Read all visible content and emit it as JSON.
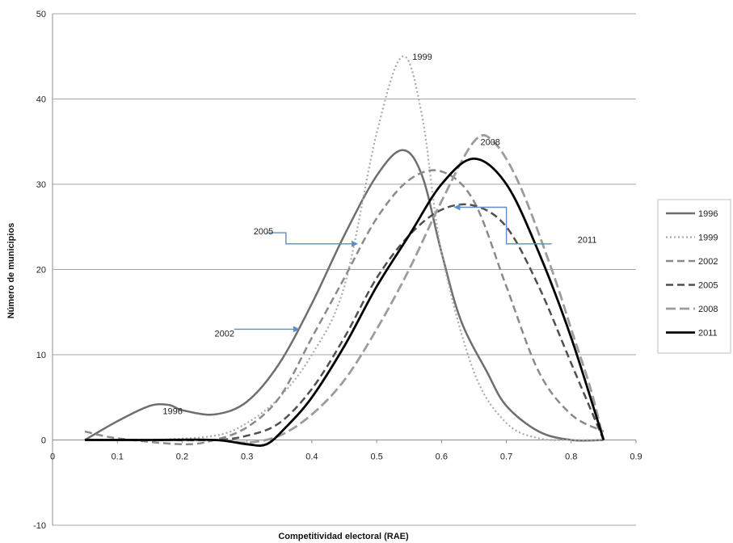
{
  "chart_data": {
    "type": "line",
    "title": "",
    "xlabel": "Competitividad electoral (RAE)",
    "ylabel": "Número de municipios",
    "xlim": [
      0,
      0.9
    ],
    "ylim": [
      -10,
      50
    ],
    "x_ticks": [
      "0",
      "0.1",
      "0.2",
      "0.3",
      "0.4",
      "0.5",
      "0.6",
      "0.7",
      "0.8",
      "0.9"
    ],
    "y_ticks": [
      "-10",
      "0",
      "10",
      "20",
      "30",
      "40",
      "50"
    ],
    "grid": "horizontal",
    "legend_position": "right",
    "series": [
      {
        "name": "1996",
        "color": "#6e6e6e",
        "dash": "solid",
        "points": [
          [
            0.05,
            0
          ],
          [
            0.1,
            2.2
          ],
          [
            0.15,
            4
          ],
          [
            0.18,
            4.1
          ],
          [
            0.2,
            3.5
          ],
          [
            0.25,
            3
          ],
          [
            0.3,
            4.5
          ],
          [
            0.35,
            9
          ],
          [
            0.4,
            16
          ],
          [
            0.45,
            24
          ],
          [
            0.5,
            31
          ],
          [
            0.54,
            34
          ],
          [
            0.57,
            31
          ],
          [
            0.6,
            22
          ],
          [
            0.63,
            14
          ],
          [
            0.67,
            8
          ],
          [
            0.7,
            4
          ],
          [
            0.75,
            1
          ],
          [
            0.8,
            0
          ],
          [
            0.85,
            0
          ]
        ]
      },
      {
        "name": "1999",
        "color": "#aaaaaa",
        "dash": "dotted",
        "points": [
          [
            0.05,
            0
          ],
          [
            0.15,
            0
          ],
          [
            0.25,
            0.5
          ],
          [
            0.3,
            2
          ],
          [
            0.35,
            5
          ],
          [
            0.4,
            10
          ],
          [
            0.45,
            18
          ],
          [
            0.5,
            36
          ],
          [
            0.54,
            45
          ],
          [
            0.57,
            38
          ],
          [
            0.6,
            22
          ],
          [
            0.65,
            8
          ],
          [
            0.7,
            2
          ],
          [
            0.75,
            0.2
          ],
          [
            0.8,
            0
          ],
          [
            0.85,
            0
          ]
        ]
      },
      {
        "name": "2002",
        "color": "#8a8a8a",
        "dash": "dash",
        "points": [
          [
            0.05,
            1
          ],
          [
            0.1,
            0.2
          ],
          [
            0.2,
            -0.5
          ],
          [
            0.25,
            0
          ],
          [
            0.3,
            1.5
          ],
          [
            0.35,
            5
          ],
          [
            0.4,
            12
          ],
          [
            0.45,
            19
          ],
          [
            0.5,
            26
          ],
          [
            0.55,
            30.5
          ],
          [
            0.6,
            31.5
          ],
          [
            0.65,
            28
          ],
          [
            0.7,
            18
          ],
          [
            0.75,
            8
          ],
          [
            0.8,
            3
          ],
          [
            0.85,
            1
          ]
        ]
      },
      {
        "name": "2005",
        "color": "#4f4f4f",
        "dash": "dash",
        "points": [
          [
            0.05,
            0
          ],
          [
            0.15,
            0
          ],
          [
            0.25,
            0
          ],
          [
            0.3,
            0.5
          ],
          [
            0.35,
            2
          ],
          [
            0.4,
            6
          ],
          [
            0.45,
            12
          ],
          [
            0.5,
            19
          ],
          [
            0.55,
            24
          ],
          [
            0.6,
            27
          ],
          [
            0.65,
            27.5
          ],
          [
            0.7,
            25
          ],
          [
            0.75,
            18
          ],
          [
            0.8,
            9
          ],
          [
            0.85,
            0
          ]
        ]
      },
      {
        "name": "2008",
        "color": "#9c9c9c",
        "dash": "longdash",
        "points": [
          [
            0.05,
            0
          ],
          [
            0.15,
            0
          ],
          [
            0.25,
            0
          ],
          [
            0.3,
            -0.3
          ],
          [
            0.35,
            0.5
          ],
          [
            0.4,
            3
          ],
          [
            0.45,
            7
          ],
          [
            0.5,
            13
          ],
          [
            0.55,
            20
          ],
          [
            0.6,
            28
          ],
          [
            0.65,
            35
          ],
          [
            0.68,
            35
          ],
          [
            0.72,
            30
          ],
          [
            0.77,
            20
          ],
          [
            0.8,
            13
          ],
          [
            0.83,
            6
          ],
          [
            0.85,
            0
          ]
        ]
      },
      {
        "name": "2011",
        "color": "#000000",
        "dash": "solid-bold",
        "points": [
          [
            0.05,
            0
          ],
          [
            0.15,
            0
          ],
          [
            0.25,
            0
          ],
          [
            0.3,
            -0.5
          ],
          [
            0.33,
            -0.5
          ],
          [
            0.36,
            1.5
          ],
          [
            0.4,
            5
          ],
          [
            0.45,
            11
          ],
          [
            0.5,
            18
          ],
          [
            0.55,
            24
          ],
          [
            0.6,
            30
          ],
          [
            0.65,
            33
          ],
          [
            0.7,
            30
          ],
          [
            0.75,
            22
          ],
          [
            0.8,
            12
          ],
          [
            0.85,
            0
          ]
        ]
      }
    ],
    "annotations": [
      {
        "text": "1999",
        "x": 0.555,
        "y": 45
      },
      {
        "text": "2008",
        "x": 0.66,
        "y": 35
      },
      {
        "text": "2005",
        "x": 0.31,
        "y": 24.5
      },
      {
        "text": "2002",
        "x": 0.25,
        "y": 12.5
      },
      {
        "text": "1996",
        "x": 0.17,
        "y": 3.4
      },
      {
        "text": "2011",
        "x": 0.81,
        "y": 23.5
      }
    ],
    "arrows": [
      {
        "from": [
          0.33,
          24.3
        ],
        "bend": [
          0.36,
          24.3
        ],
        "elbow": [
          0.36,
          23
        ],
        "to": [
          0.47,
          23
        ]
      },
      {
        "from": [
          0.28,
          13
        ],
        "to": [
          0.38,
          13
        ]
      },
      {
        "from": [
          0.77,
          23
        ],
        "bend": [
          0.7,
          23
        ],
        "elbow": [
          0.7,
          27.3
        ],
        "to": [
          0.62,
          27.3
        ]
      }
    ],
    "arrow_color": "#5b8fc7"
  }
}
